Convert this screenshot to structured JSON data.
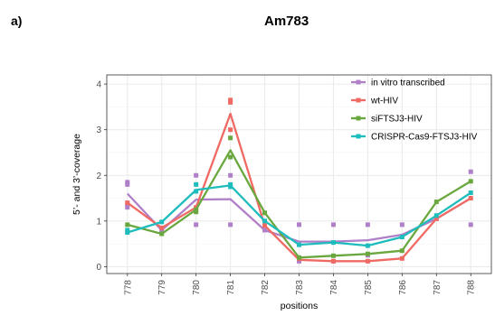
{
  "panel_label": "a)",
  "chart_data": {
    "type": "line",
    "title": "Am783",
    "xlabel": "positions",
    "ylabel": "5’- and 3’-coverage",
    "x": [
      "778",
      "779",
      "780",
      "781",
      "782",
      "783",
      "784",
      "785",
      "786",
      "787",
      "788"
    ],
    "ylim": [
      -0.15,
      4.2
    ],
    "yticks": [
      0,
      1,
      2,
      3,
      4
    ],
    "grid": true,
    "legend_position": "top-right",
    "series": [
      {
        "name": "in vitro transcribed",
        "color": "#b07fc9",
        "values": [
          1.6,
          0.8,
          1.47,
          1.48,
          0.8,
          0.55,
          0.55,
          0.58,
          0.7,
          1.05,
          1.5
        ],
        "points": [
          [
            778,
            1.85
          ],
          [
            778,
            1.8
          ],
          [
            778,
            1.35
          ],
          [
            778,
            1.3
          ],
          [
            779,
            0.78
          ],
          [
            780,
            2.0
          ],
          [
            780,
            0.92
          ],
          [
            781,
            2.0
          ],
          [
            781,
            0.92
          ],
          [
            782,
            0.8
          ],
          [
            783,
            0.92
          ],
          [
            783,
            0.12
          ],
          [
            784,
            0.92
          ],
          [
            784,
            0.12
          ],
          [
            785,
            0.92
          ],
          [
            785,
            0.25
          ],
          [
            786,
            0.92
          ],
          [
            787,
            1.05
          ],
          [
            788,
            2.08
          ],
          [
            788,
            0.92
          ]
        ]
      },
      {
        "name": "wt-HIV",
        "color": "#ef6a63",
        "values": [
          1.4,
          0.85,
          1.3,
          3.35,
          0.9,
          0.15,
          0.12,
          0.12,
          0.18,
          1.05,
          1.5
        ],
        "points": [
          [
            778,
            1.4
          ],
          [
            779,
            0.85
          ],
          [
            780,
            1.3
          ],
          [
            781,
            3.65
          ],
          [
            781,
            3.6
          ],
          [
            781,
            3.0
          ],
          [
            782,
            0.9
          ],
          [
            783,
            0.18
          ],
          [
            784,
            0.12
          ],
          [
            785,
            0.12
          ],
          [
            786,
            0.18
          ],
          [
            787,
            1.05
          ],
          [
            788,
            1.5
          ]
        ]
      },
      {
        "name": "siFTSJ3-HIV",
        "color": "#6aa83f",
        "values": [
          0.92,
          0.72,
          1.25,
          2.55,
          1.18,
          0.2,
          0.24,
          0.28,
          0.35,
          1.42,
          1.87
        ],
        "points": [
          [
            778,
            0.92
          ],
          [
            779,
            0.72
          ],
          [
            780,
            1.2
          ],
          [
            780,
            1.25
          ],
          [
            781,
            2.82
          ],
          [
            781,
            2.4
          ],
          [
            782,
            1.18
          ],
          [
            783,
            0.2
          ],
          [
            784,
            0.24
          ],
          [
            785,
            0.28
          ],
          [
            786,
            0.35
          ],
          [
            787,
            1.42
          ],
          [
            788,
            1.87
          ]
        ]
      },
      {
        "name": "CRISPR-Cas9-FTSJ3-HIV",
        "color": "#1ebcbc",
        "values": [
          0.75,
          0.98,
          1.68,
          1.78,
          1.0,
          0.48,
          0.53,
          0.46,
          0.65,
          1.12,
          1.62
        ],
        "points": [
          [
            778,
            0.8
          ],
          [
            778,
            0.75
          ],
          [
            779,
            0.98
          ],
          [
            780,
            1.8
          ],
          [
            780,
            1.65
          ],
          [
            781,
            1.8
          ],
          [
            781,
            1.75
          ],
          [
            782,
            1.0
          ],
          [
            783,
            0.48
          ],
          [
            784,
            0.53
          ],
          [
            785,
            0.46
          ],
          [
            786,
            0.65
          ],
          [
            787,
            1.12
          ],
          [
            788,
            1.62
          ]
        ]
      }
    ]
  }
}
